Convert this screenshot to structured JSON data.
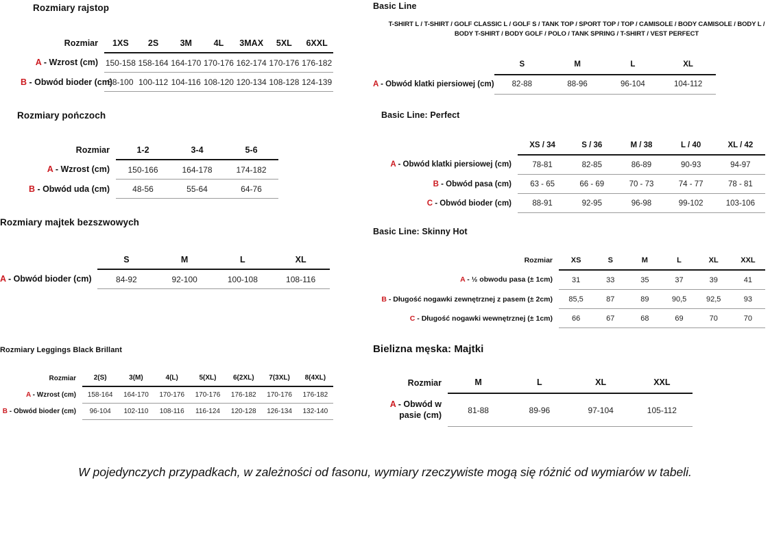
{
  "colors": {
    "accent_red": "#cc1a20",
    "text": "#1a1a1a",
    "header_rule": "#151515",
    "row_rule": "#9a9a9a"
  },
  "note": "W pojedynczych przypadkach, w zależności od fasonu, wymiary rzeczywiste mogą się różnić od wymiarów w tabeli.",
  "sections": [
    {
      "id": "rozmiary-rajstop",
      "title": "Rozmiary rajstop",
      "table": {
        "size_label": "Rozmiar",
        "columns": [
          "1XS",
          "2S",
          "3M",
          "4L",
          "3MAX",
          "5XL",
          "6XXL"
        ],
        "rows": [
          {
            "key": "A",
            "label": "Wzrost (cm)",
            "values": [
              "150-158",
              "158-164",
              "164-170",
              "170-176",
              "162-174",
              "170-176",
              "176-182"
            ]
          },
          {
            "key": "B",
            "label": "Obwód bioder (cm)",
            "values": [
              "88-100",
              "100-112",
              "104-116",
              "108-120",
              "120-134",
              "108-128",
              "124-139"
            ]
          }
        ]
      }
    },
    {
      "id": "rozmiary-ponczoch",
      "title": "Rozmiary pończoch",
      "table": {
        "size_label": "Rozmiar",
        "columns": [
          "1-2",
          "3-4",
          "5-6"
        ],
        "rows": [
          {
            "key": "A",
            "label": "Wzrost (cm)",
            "values": [
              "150-166",
              "164-178",
              "174-182"
            ]
          },
          {
            "key": "B",
            "label": "Obwód uda (cm)",
            "values": [
              "48-56",
              "55-64",
              "64-76"
            ]
          }
        ]
      }
    },
    {
      "id": "rozmiary-majtek-bezszwowych",
      "title": "Rozmiary majtek bezszwowych",
      "table": {
        "size_label": "",
        "columns": [
          "S",
          "M",
          "L",
          "XL"
        ],
        "rows": [
          {
            "key": "A",
            "label": "Obwód bioder (cm)",
            "values": [
              "84-92",
              "92-100",
              "100-108",
              "108-116"
            ]
          }
        ]
      }
    },
    {
      "id": "rozmiary-leggings-black-brillant",
      "title": "Rozmiary Leggings Black Brillant",
      "table": {
        "size_label": "Rozmiar",
        "columns": [
          "2(S)",
          "3(M)",
          "4(L)",
          "5(XL)",
          "6(2XL)",
          "7(3XL)",
          "8(4XL)"
        ],
        "rows": [
          {
            "key": "A",
            "label": "Wzrost (cm)",
            "values": [
              "158-164",
              "164-170",
              "170-176",
              "170-176",
              "176-182",
              "170-176",
              "176-182"
            ]
          },
          {
            "key": "B",
            "label": "Obwód bioder (cm)",
            "values": [
              "96-104",
              "102-110",
              "108-116",
              "116-124",
              "120-128",
              "126-134",
              "132-140"
            ]
          }
        ]
      }
    },
    {
      "id": "basic-line",
      "title": "Basic Line",
      "subtitle": "T-SHIRT L / T-SHIRT / GOLF CLASSIC L / GOLF S / TANK TOP / SPORT TOP / TOP / CAMISOLE / BODY CAMISOLE / BODY L / BODY T-SHIRT / BODY GOLF / POLO / TANK SPRING / T-SHIRT / VEST PERFECT",
      "table": {
        "size_label": "",
        "columns": [
          "S",
          "M",
          "L",
          "XL"
        ],
        "rows": [
          {
            "key": "A",
            "label": "Obwód klatki piersiowej (cm)",
            "values": [
              "82-88",
              "88-96",
              "96-104",
              "104-112"
            ]
          }
        ]
      }
    },
    {
      "id": "basic-line-perfect",
      "title": "Basic Line: Perfect",
      "table": {
        "size_label": "",
        "columns": [
          "XS / 34",
          "S / 36",
          "M / 38",
          "L / 40",
          "XL / 42"
        ],
        "rows": [
          {
            "key": "A",
            "label": "Obwód klatki piersiowej (cm)",
            "values": [
              "78-81",
              "82-85",
              "86-89",
              "90-93",
              "94-97"
            ]
          },
          {
            "key": "B",
            "label": "Obwód pasa (cm)",
            "values": [
              "63 - 65",
              "66 - 69",
              "70 - 73",
              "74 - 77",
              "78 - 81"
            ]
          },
          {
            "key": "C",
            "label": "Obwód bioder (cm)",
            "values": [
              "88-91",
              "92-95",
              "96-98",
              "99-102",
              "103-106"
            ]
          }
        ]
      }
    },
    {
      "id": "basic-line-skinny-hot",
      "title": "Basic Line: Skinny Hot",
      "table": {
        "size_label": "Rozmiar",
        "columns": [
          "XS",
          "S",
          "M",
          "L",
          "XL",
          "XXL"
        ],
        "rows": [
          {
            "key": "A",
            "label": "½ obwodu pasa (± 1cm)",
            "values": [
              "31",
              "33",
              "35",
              "37",
              "39",
              "41"
            ]
          },
          {
            "key": "B",
            "label": "Długość nogawki zewnętrznej z pasem (± 2cm)",
            "values": [
              "85,5",
              "87",
              "89",
              "90,5",
              "92,5",
              "93"
            ]
          },
          {
            "key": "C",
            "label": "Długość nogawki wewnętrznej (± 1cm)",
            "values": [
              "66",
              "67",
              "68",
              "69",
              "70",
              "70"
            ]
          }
        ]
      }
    },
    {
      "id": "bielizna-meska-majtki",
      "title": "Bielizna męska: Majtki",
      "table": {
        "size_label": "Rozmiar",
        "columns": [
          "M",
          "L",
          "XL",
          "XXL"
        ],
        "rows": [
          {
            "key": "A",
            "label": "Obwód w pasie (cm)",
            "values": [
              "81-88",
              "89-96",
              "97-104",
              "105-112"
            ]
          }
        ]
      }
    }
  ]
}
